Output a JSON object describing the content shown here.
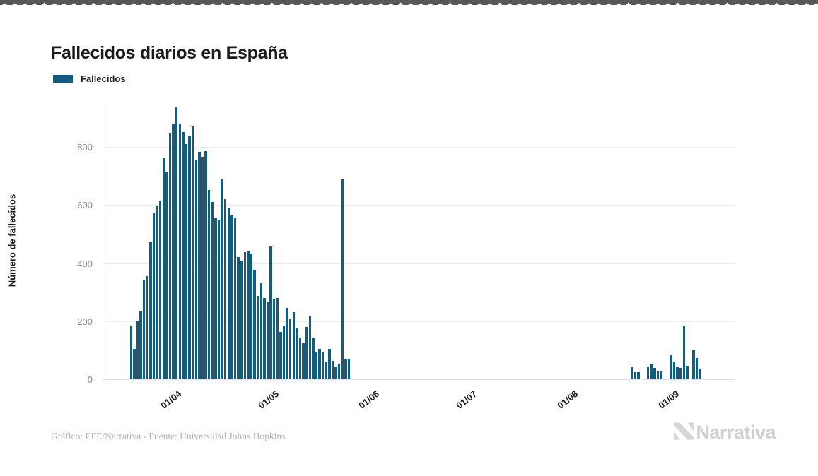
{
  "title": "Fallecidos diarios en España",
  "legend": {
    "label": "Fallecidos",
    "swatch_color": "#135c7e"
  },
  "y_axis": {
    "title": "Número de fallecidos",
    "ticks": [
      0,
      200,
      400,
      600,
      800
    ]
  },
  "x_axis": {
    "tick_labels": [
      "01/04",
      "01/05",
      "01/06",
      "01/07",
      "01/08",
      "01/09"
    ]
  },
  "footer": {
    "credit": "Gráfico: EFE/Narrativa - Fuente: Universidad Johns Hopkins",
    "brand": "Narrativa"
  },
  "chart_data": {
    "type": "bar",
    "title": "Fallecidos diarios en España",
    "series_name": "Fallecidos",
    "ylabel": "Número de fallecidos",
    "bar_color": "#135c7e",
    "grid": "horizontal",
    "ylim": [
      0,
      960
    ],
    "start_date": "18/03/2020",
    "end_date": "09/09/2020",
    "date_format": "dd/mm/yyyy, one bar per day",
    "x_ticks": [
      {
        "label": "01/04",
        "day_index": 14
      },
      {
        "label": "01/05",
        "day_index": 44
      },
      {
        "label": "01/06",
        "day_index": 75
      },
      {
        "label": "01/07",
        "day_index": 105
      },
      {
        "label": "01/08",
        "day_index": 136
      },
      {
        "label": "01/09",
        "day_index": 167
      }
    ],
    "values": [
      183,
      105,
      202,
      237,
      343,
      355,
      474,
      575,
      595,
      615,
      760,
      712,
      846,
      880,
      935,
      877,
      850,
      810,
      838,
      870,
      757,
      783,
      763,
      785,
      652,
      611,
      558,
      546,
      688,
      619,
      591,
      565,
      558,
      420,
      408,
      437,
      440,
      433,
      376,
      287,
      331,
      279,
      268,
      457,
      278,
      280,
      164,
      184,
      246,
      208,
      230,
      176,
      144,
      124,
      181,
      216,
      140,
      96,
      104,
      92,
      60,
      104,
      63,
      45,
      52,
      688,
      70,
      70,
      0,
      0,
      0,
      0,
      0,
      0,
      0,
      0,
      0,
      0,
      0,
      0,
      0,
      0,
      0,
      0,
      0,
      0,
      0,
      0,
      0,
      0,
      0,
      0,
      0,
      0,
      0,
      0,
      0,
      0,
      0,
      0,
      0,
      0,
      0,
      0,
      0,
      0,
      0,
      0,
      0,
      0,
      0,
      0,
      0,
      0,
      0,
      0,
      0,
      0,
      0,
      0,
      0,
      0,
      0,
      0,
      0,
      0,
      0,
      0,
      0,
      0,
      0,
      0,
      0,
      0,
      0,
      0,
      0,
      0,
      0,
      0,
      0,
      0,
      0,
      0,
      0,
      0,
      0,
      0,
      0,
      0,
      0,
      0,
      0,
      0,
      44,
      24,
      25,
      0,
      0,
      44,
      54,
      38,
      28,
      26,
      0,
      0,
      85,
      62,
      44,
      40,
      186,
      46,
      0,
      99,
      72,
      36
    ]
  }
}
